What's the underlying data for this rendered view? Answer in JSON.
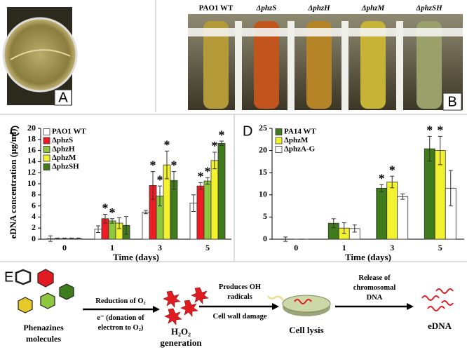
{
  "panels": {
    "a": "A",
    "b": "B",
    "c": "C",
    "d": "D",
    "e": "E"
  },
  "tubes": [
    "PAO1 WT",
    "ΔphzS",
    "ΔphzH",
    "ΔphzM",
    "ΔphzSH"
  ],
  "chart_data": [
    {
      "type": "bar",
      "ylabel": "eDNA concentration (µg/ml)",
      "xlabel": "Time (days)",
      "categories": [
        "0",
        "1",
        "3",
        "5"
      ],
      "ylim": [
        0,
        20
      ],
      "yticks": [
        0,
        2,
        4,
        6,
        8,
        10,
        12,
        14,
        16,
        18,
        20
      ],
      "series": [
        {
          "name": "PAO1 WT",
          "color": "#ffffff",
          "values": [
            0.1,
            1.8,
            4.9,
            6.5
          ],
          "errors": [
            0.5,
            0.6,
            0.3,
            1.5
          ],
          "stars": [
            null,
            null,
            null,
            null
          ]
        },
        {
          "name": "ΔphzS",
          "color": "#ee1c24",
          "values": [
            0.1,
            3.7,
            9.7,
            9.6
          ],
          "errors": [
            0.1,
            0.8,
            2.5,
            0.6
          ],
          "stars": [
            null,
            "*",
            "*",
            "*"
          ]
        },
        {
          "name": "ΔphzH",
          "color": "#8dc63f",
          "values": [
            0.1,
            3.3,
            7.8,
            10.5
          ],
          "errors": [
            0.1,
            0.4,
            1.8,
            0.6
          ],
          "stars": [
            null,
            "*",
            "*",
            "*"
          ]
        },
        {
          "name": "ΔphzM",
          "color": "#f2f230",
          "values": [
            0.1,
            2.9,
            13.4,
            14.2
          ],
          "errors": [
            0.1,
            1.0,
            2.5,
            1.5
          ],
          "stars": [
            null,
            null,
            "*",
            "*"
          ]
        },
        {
          "name": "ΔphzSH",
          "color": "#3f7a1d",
          "values": [
            0.1,
            2.5,
            10.6,
            17.3
          ],
          "errors": [
            0.1,
            1.6,
            1.6,
            0.4
          ],
          "stars": [
            null,
            null,
            "*",
            "*"
          ]
        }
      ]
    },
    {
      "type": "bar",
      "xlabel": "Time (days)",
      "categories": [
        "0",
        "1",
        "3",
        "5"
      ],
      "ylim": [
        0,
        25
      ],
      "yticks": [
        0,
        5,
        10,
        15,
        20,
        25
      ],
      "series": [
        {
          "name": "PA14 WT",
          "color": "#3f7a1d",
          "values": [
            0,
            3.6,
            11.5,
            20.4
          ],
          "errors": [
            0.5,
            1.0,
            0.8,
            2.8
          ],
          "stars": [
            null,
            null,
            "*",
            "*"
          ]
        },
        {
          "name": "ΔphzM",
          "color": "#f2f230",
          "values": [
            0,
            2.5,
            12.9,
            20.0
          ],
          "errors": [
            0,
            1.2,
            1.3,
            3.2
          ],
          "stars": [
            null,
            null,
            "*",
            "*"
          ]
        },
        {
          "name": "ΔphzA-G",
          "color": "#ffffff",
          "values": [
            0,
            2.4,
            9.6,
            11.5
          ],
          "errors": [
            0,
            0.8,
            0.6,
            4.0
          ],
          "stars": [
            null,
            null,
            null,
            null
          ]
        }
      ]
    }
  ],
  "diagram": {
    "molecules": [
      "Phenazines",
      "molecules"
    ],
    "step1_top": [
      "Reduction of O₂"
    ],
    "step1_bottom": [
      "e⁻ (donation of",
      "electron to O₂)"
    ],
    "h2o2": [
      "H₂O₂",
      "generation"
    ],
    "step2_top": [
      "Produces OH",
      "radicals"
    ],
    "step2_bottom": [
      "Cell wall damage"
    ],
    "lysis": [
      "Cell lysis"
    ],
    "step3_top": [
      "Release of",
      "chromosomal",
      "DNA"
    ],
    "edna": [
      "eDNA"
    ]
  }
}
